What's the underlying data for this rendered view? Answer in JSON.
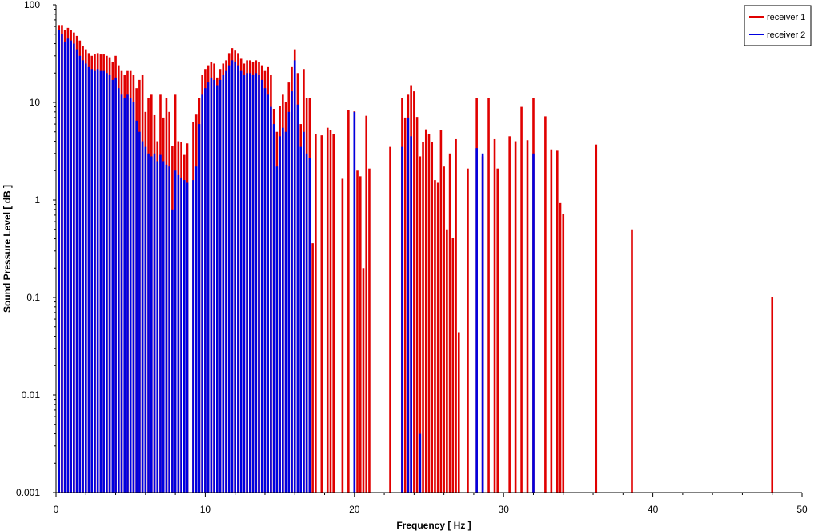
{
  "chart_data": {
    "type": "bar",
    "title": "",
    "xlabel": "Frequency [ Hz ]",
    "ylabel": "Sound Pressure Level [ dB ]",
    "xlim": [
      0,
      50
    ],
    "ylim": [
      0.001,
      100
    ],
    "yscale": "log",
    "x_ticks": [
      0,
      10,
      20,
      30,
      40,
      50
    ],
    "y_ticks": [
      0.001,
      0.01,
      0.1,
      1,
      10,
      100
    ],
    "x_tick_labels": [
      "0",
      "10",
      "20",
      "30",
      "40",
      "50"
    ],
    "y_tick_labels": [
      "0.001",
      "0.01",
      "0.1",
      "1",
      "10",
      "100"
    ],
    "grid": false,
    "legend_position": "top-right",
    "legend": [
      "receiver 1",
      "receiver 2"
    ],
    "series": [
      {
        "name": "receiver 1",
        "color": "#e00000",
        "points": [
          [
            0.2,
            62
          ],
          [
            0.4,
            62
          ],
          [
            0.6,
            55
          ],
          [
            0.8,
            58
          ],
          [
            1.0,
            55
          ],
          [
            1.2,
            52
          ],
          [
            1.4,
            48
          ],
          [
            1.6,
            43
          ],
          [
            1.8,
            38
          ],
          [
            2.0,
            35
          ],
          [
            2.2,
            32
          ],
          [
            2.4,
            30
          ],
          [
            2.6,
            31
          ],
          [
            2.8,
            32
          ],
          [
            3.0,
            31
          ],
          [
            3.2,
            31
          ],
          [
            3.4,
            30
          ],
          [
            3.6,
            29
          ],
          [
            3.8,
            26
          ],
          [
            4.0,
            30
          ],
          [
            4.2,
            24
          ],
          [
            4.4,
            21
          ],
          [
            4.6,
            19
          ],
          [
            4.8,
            21
          ],
          [
            5.0,
            21
          ],
          [
            5.2,
            19
          ],
          [
            5.4,
            14
          ],
          [
            5.6,
            17
          ],
          [
            5.8,
            19
          ],
          [
            6.0,
            8
          ],
          [
            6.2,
            11
          ],
          [
            6.4,
            12
          ],
          [
            6.6,
            7.4
          ],
          [
            6.8,
            4.0
          ],
          [
            7.0,
            12
          ],
          [
            7.2,
            7.0
          ],
          [
            7.4,
            11
          ],
          [
            7.6,
            8.0
          ],
          [
            7.8,
            3.6
          ],
          [
            8.0,
            12
          ],
          [
            8.2,
            4.0
          ],
          [
            8.4,
            3.9
          ],
          [
            8.6,
            2.9
          ],
          [
            8.8,
            3.8
          ],
          [
            9.2,
            6.3
          ],
          [
            9.4,
            7.5
          ],
          [
            9.6,
            11
          ],
          [
            9.8,
            19
          ],
          [
            10.0,
            22
          ],
          [
            10.2,
            24
          ],
          [
            10.4,
            26
          ],
          [
            10.6,
            25
          ],
          [
            10.8,
            18
          ],
          [
            11.0,
            22
          ],
          [
            11.2,
            25
          ],
          [
            11.4,
            27
          ],
          [
            11.6,
            32
          ],
          [
            11.8,
            36
          ],
          [
            12.0,
            34
          ],
          [
            12.2,
            32
          ],
          [
            12.4,
            28
          ],
          [
            12.6,
            25
          ],
          [
            12.8,
            27
          ],
          [
            13.0,
            27
          ],
          [
            13.2,
            26
          ],
          [
            13.4,
            27
          ],
          [
            13.6,
            26
          ],
          [
            13.8,
            24
          ],
          [
            14.0,
            21
          ],
          [
            14.2,
            23
          ],
          [
            14.4,
            19
          ],
          [
            14.6,
            8.6
          ],
          [
            14.8,
            5.0
          ],
          [
            15.0,
            9.2
          ],
          [
            15.2,
            12
          ],
          [
            15.4,
            10
          ],
          [
            15.6,
            16
          ],
          [
            15.8,
            23
          ],
          [
            16.0,
            35
          ],
          [
            16.2,
            20
          ],
          [
            16.4,
            6.0
          ],
          [
            16.6,
            22
          ],
          [
            16.8,
            11
          ],
          [
            17.0,
            11
          ],
          [
            17.2,
            0.36
          ],
          [
            17.4,
            4.7
          ],
          [
            17.8,
            4.6
          ],
          [
            18.2,
            5.5
          ],
          [
            18.4,
            5.2
          ],
          [
            18.6,
            4.7
          ],
          [
            19.2,
            1.65
          ],
          [
            19.6,
            8.3
          ],
          [
            20.0,
            8.1
          ],
          [
            20.2,
            2.0
          ],
          [
            20.4,
            1.75
          ],
          [
            20.6,
            0.2
          ],
          [
            20.8,
            7.3
          ],
          [
            21.0,
            2.1
          ],
          [
            22.4,
            3.5
          ],
          [
            23.2,
            11
          ],
          [
            23.4,
            7.0
          ],
          [
            23.6,
            12
          ],
          [
            23.8,
            15
          ],
          [
            24.0,
            13
          ],
          [
            24.2,
            7.1
          ],
          [
            24.4,
            2.8
          ],
          [
            24.6,
            3.9
          ],
          [
            24.8,
            5.3
          ],
          [
            25.0,
            4.7
          ],
          [
            25.2,
            3.9
          ],
          [
            25.4,
            1.6
          ],
          [
            25.6,
            1.5
          ],
          [
            25.8,
            5.2
          ],
          [
            26.0,
            2.2
          ],
          [
            26.2,
            0.5
          ],
          [
            26.4,
            3.0
          ],
          [
            26.6,
            0.41
          ],
          [
            26.8,
            4.2
          ],
          [
            27.0,
            0.044
          ],
          [
            27.6,
            2.1
          ],
          [
            28.2,
            11
          ],
          [
            28.6,
            2.8
          ],
          [
            29.0,
            11
          ],
          [
            29.4,
            4.2
          ],
          [
            29.6,
            2.1
          ],
          [
            30.4,
            4.5
          ],
          [
            30.8,
            4.0
          ],
          [
            31.2,
            9.0
          ],
          [
            31.6,
            4.1
          ],
          [
            32.0,
            11
          ],
          [
            32.8,
            7.2
          ],
          [
            33.2,
            3.3
          ],
          [
            33.6,
            3.2
          ],
          [
            33.8,
            0.93
          ],
          [
            34.0,
            0.72
          ],
          [
            36.2,
            3.7
          ],
          [
            38.6,
            0.5
          ],
          [
            48.0,
            0.1
          ]
        ]
      },
      {
        "name": "receiver 2",
        "color": "#0000e0",
        "points": [
          [
            0.2,
            55
          ],
          [
            0.4,
            50
          ],
          [
            0.6,
            42
          ],
          [
            0.8,
            45
          ],
          [
            1.0,
            43
          ],
          [
            1.2,
            40
          ],
          [
            1.4,
            35
          ],
          [
            1.6,
            30
          ],
          [
            1.8,
            27
          ],
          [
            2.0,
            25
          ],
          [
            2.2,
            23
          ],
          [
            2.4,
            22
          ],
          [
            2.6,
            21
          ],
          [
            2.8,
            22
          ],
          [
            3.0,
            21
          ],
          [
            3.2,
            21
          ],
          [
            3.4,
            20
          ],
          [
            3.6,
            19
          ],
          [
            3.8,
            17
          ],
          [
            4.0,
            18
          ],
          [
            4.2,
            14
          ],
          [
            4.4,
            12
          ],
          [
            4.6,
            11
          ],
          [
            4.8,
            12
          ],
          [
            5.0,
            11
          ],
          [
            5.2,
            10
          ],
          [
            5.4,
            6.5
          ],
          [
            5.6,
            5.0
          ],
          [
            5.8,
            4.0
          ],
          [
            6.0,
            3.5
          ],
          [
            6.2,
            3.0
          ],
          [
            6.4,
            2.8
          ],
          [
            6.6,
            3.0
          ],
          [
            6.8,
            2.5
          ],
          [
            7.0,
            2.9
          ],
          [
            7.2,
            2.5
          ],
          [
            7.4,
            2.3
          ],
          [
            7.6,
            2.2
          ],
          [
            7.8,
            0.8
          ],
          [
            8.0,
            2.0
          ],
          [
            8.2,
            1.8
          ],
          [
            8.4,
            1.7
          ],
          [
            8.6,
            1.6
          ],
          [
            8.8,
            1.5
          ],
          [
            9.2,
            1.6
          ],
          [
            9.4,
            2.2
          ],
          [
            9.6,
            6.0
          ],
          [
            9.8,
            12
          ],
          [
            10.0,
            14
          ],
          [
            10.2,
            16
          ],
          [
            10.4,
            18
          ],
          [
            10.6,
            17
          ],
          [
            10.8,
            15
          ],
          [
            11.0,
            17
          ],
          [
            11.2,
            19
          ],
          [
            11.4,
            21
          ],
          [
            11.6,
            24
          ],
          [
            11.8,
            27
          ],
          [
            12.0,
            26
          ],
          [
            12.2,
            24
          ],
          [
            12.4,
            21
          ],
          [
            12.6,
            19
          ],
          [
            12.8,
            20
          ],
          [
            13.0,
            20
          ],
          [
            13.2,
            19
          ],
          [
            13.4,
            20
          ],
          [
            13.6,
            19
          ],
          [
            13.8,
            17
          ],
          [
            14.0,
            14
          ],
          [
            14.2,
            12
          ],
          [
            14.4,
            9.0
          ],
          [
            14.6,
            6.0
          ],
          [
            14.8,
            2.2
          ],
          [
            15.0,
            4.5
          ],
          [
            15.2,
            5.5
          ],
          [
            15.4,
            5.0
          ],
          [
            15.6,
            8.0
          ],
          [
            15.8,
            13
          ],
          [
            16.0,
            27
          ],
          [
            16.2,
            9.5
          ],
          [
            16.4,
            3.5
          ],
          [
            16.6,
            5.0
          ],
          [
            16.8,
            3.0
          ],
          [
            17.0,
            2.7
          ],
          [
            20.0,
            8.0
          ],
          [
            23.2,
            3.5
          ],
          [
            23.6,
            7.0
          ],
          [
            23.8,
            4.5
          ],
          [
            24.4,
            0.004
          ],
          [
            28.2,
            3.4
          ],
          [
            28.6,
            3.0
          ],
          [
            32.0,
            3.0
          ]
        ]
      }
    ]
  }
}
